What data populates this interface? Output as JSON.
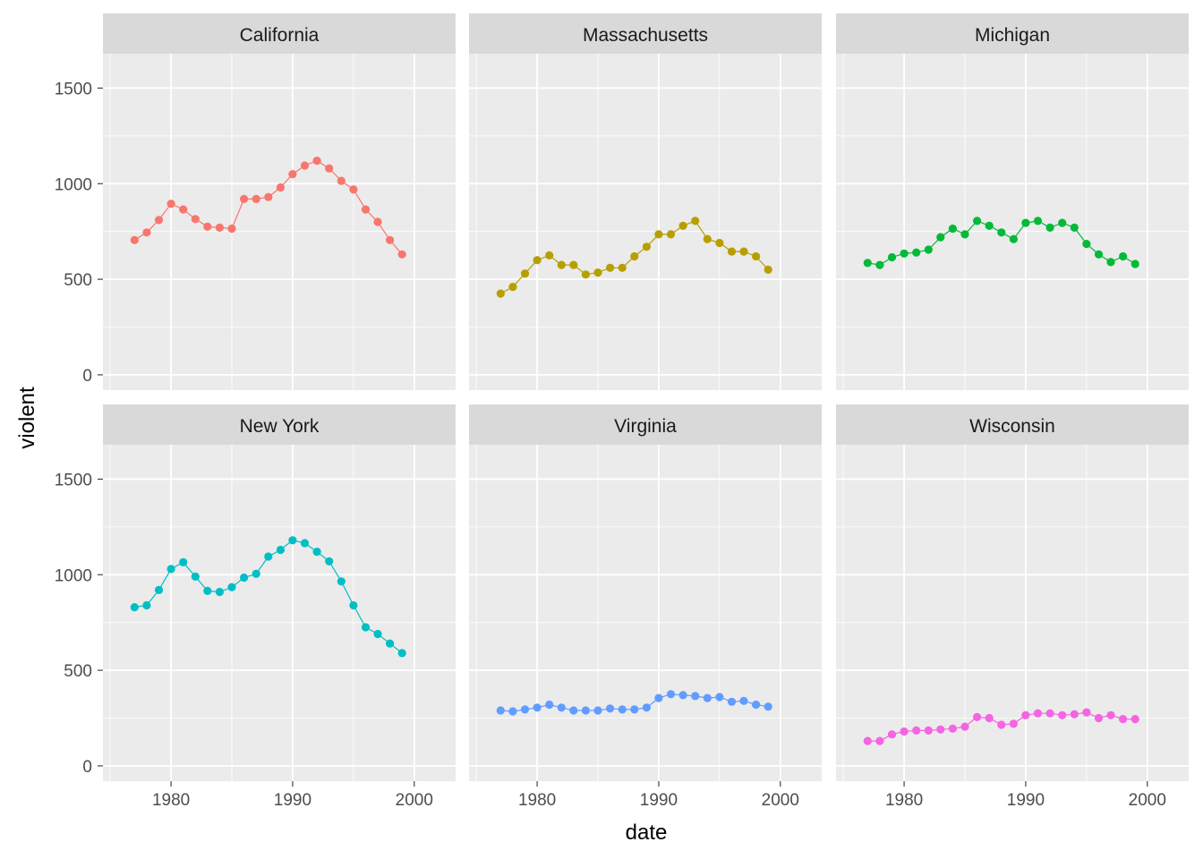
{
  "chart_data": {
    "type": "line",
    "layout": "facet grid, 2 rows x 3 columns, shared axes",
    "xlabel": "date",
    "ylabel": "violent",
    "xlim": [
      1974.4,
      2003.4
    ],
    "ylim": [
      -80,
      1680
    ],
    "x_ticks": [
      1980,
      1990,
      2000
    ],
    "x_tick_labels": [
      "1980",
      "1990",
      "2000"
    ],
    "y_ticks": [
      0,
      500,
      1000,
      1500
    ],
    "y_tick_labels": [
      "0",
      "500",
      "1000",
      "1500"
    ],
    "x": [
      1977,
      1978,
      1979,
      1980,
      1981,
      1982,
      1983,
      1984,
      1985,
      1986,
      1987,
      1988,
      1989,
      1990,
      1991,
      1992,
      1993,
      1994,
      1995,
      1996,
      1997,
      1998,
      1999
    ],
    "series": [
      {
        "name": "California",
        "color": "#F8766D",
        "values": [
          705,
          745,
          810,
          895,
          865,
          815,
          775,
          770,
          765,
          920,
          920,
          930,
          980,
          1050,
          1095,
          1120,
          1080,
          1015,
          970,
          865,
          800,
          705,
          630
        ]
      },
      {
        "name": "Massachusetts",
        "color": "#B79F00",
        "values": [
          425,
          460,
          530,
          600,
          625,
          575,
          575,
          525,
          535,
          560,
          560,
          620,
          670,
          735,
          735,
          780,
          805,
          710,
          690,
          645,
          645,
          620,
          550
        ]
      },
      {
        "name": "Michigan",
        "color": "#00BA38",
        "values": [
          585,
          575,
          615,
          635,
          640,
          655,
          720,
          765,
          735,
          805,
          780,
          745,
          710,
          795,
          805,
          770,
          795,
          770,
          685,
          630,
          590,
          620,
          580
        ]
      },
      {
        "name": "New York",
        "color": "#00BFC4",
        "values": [
          830,
          840,
          920,
          1030,
          1065,
          990,
          915,
          910,
          935,
          985,
          1005,
          1095,
          1130,
          1180,
          1165,
          1120,
          1070,
          965,
          840,
          725,
          690,
          640,
          590
        ]
      },
      {
        "name": "Virginia",
        "color": "#619CFF",
        "values": [
          290,
          285,
          295,
          305,
          320,
          305,
          290,
          290,
          290,
          300,
          295,
          295,
          305,
          355,
          375,
          370,
          365,
          355,
          360,
          335,
          340,
          320,
          310
        ]
      },
      {
        "name": "Wisconsin",
        "color": "#F564E3",
        "values": [
          130,
          130,
          165,
          180,
          185,
          185,
          190,
          195,
          205,
          255,
          250,
          215,
          220,
          265,
          275,
          275,
          265,
          270,
          280,
          250,
          265,
          245,
          245
        ]
      }
    ]
  }
}
